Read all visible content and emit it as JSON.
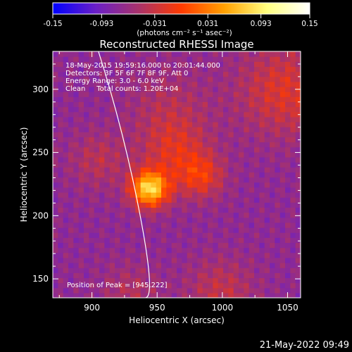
{
  "chart_data": {
    "type": "heatmap",
    "title": "Reconstructed RHESSI Image",
    "xlabel": "Heliocentric X (arcsec)",
    "ylabel": "Heliocentric Y (arcsec)",
    "xlim": [
      870,
      1060
    ],
    "ylim": [
      135,
      330
    ],
    "xticks": [
      900,
      950,
      1000,
      1050
    ],
    "yticks": [
      150,
      200,
      250,
      300
    ],
    "colorbar": {
      "label": "(photons cm⁻² s⁻¹ asec⁻²)",
      "range": [
        -0.15,
        0.15
      ],
      "ticks": [
        "-0.15",
        "-0.093",
        "-0.031",
        "0.031",
        "0.093",
        "0.15"
      ],
      "stops": [
        "#0000ff",
        "#6a1fc7",
        "#a8326b",
        "#ff3a00",
        "#ffa000",
        "#ffff80",
        "#ffffff"
      ]
    },
    "annotations": [
      "18-May-2015 19:59:16.000 to 20:01:44.000",
      "Detectors: 3F 5F 6F 7F 8F 9F, Att 0",
      "Energy Range: 3.0 - 6.0 keV",
      "Clean     Total counts: 1.20E+04"
    ],
    "peak_label": "Position of Peak = [945,222]",
    "peak": [
      945,
      222
    ],
    "limb": [
      [
        905,
        330
      ],
      [
        925,
        265
      ],
      [
        937,
        200
      ],
      [
        941,
        135
      ]
    ],
    "sources": [
      {
        "x": 945,
        "y": 222,
        "amp": 0.15,
        "sigma": 10
      },
      {
        "x": 985,
        "y": 232,
        "amp": 0.055,
        "sigma": 12
      },
      {
        "x": 965,
        "y": 250,
        "amp": 0.045,
        "sigma": 18
      },
      {
        "x": 1050,
        "y": 300,
        "amp": 0.05,
        "sigma": 25
      },
      {
        "x": 960,
        "y": 285,
        "amp": 0.025,
        "sigma": 22
      },
      {
        "x": 905,
        "y": 245,
        "amp": 0.03,
        "sigma": 15
      },
      {
        "x": 1000,
        "y": 140,
        "amp": 0.035,
        "sigma": 18
      },
      {
        "x": 930,
        "y": 140,
        "amp": 0.025,
        "sigma": 15
      }
    ],
    "background": -0.07,
    "grid": false,
    "legend": "none"
  },
  "footer": {
    "timestamp": "21-May-2022 09:49"
  }
}
